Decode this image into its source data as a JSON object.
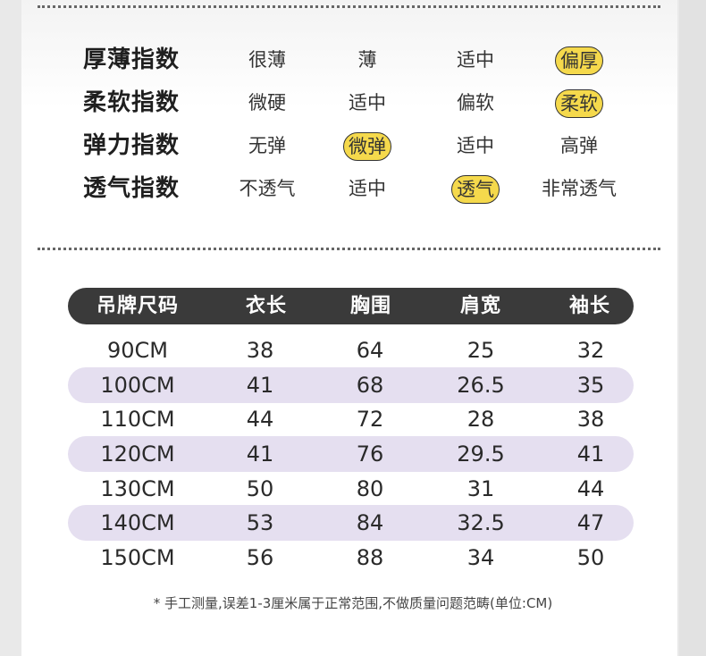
{
  "attributes": [
    {
      "label": "厚薄指数",
      "options": [
        {
          "text": "很薄",
          "selected": false
        },
        {
          "text": "薄",
          "selected": false
        },
        {
          "text": "适中",
          "selected": false
        },
        {
          "text": "偏厚",
          "selected": true
        }
      ]
    },
    {
      "label": "柔软指数",
      "options": [
        {
          "text": "微硬",
          "selected": false
        },
        {
          "text": "适中",
          "selected": false
        },
        {
          "text": "偏软",
          "selected": false
        },
        {
          "text": "柔软",
          "selected": true
        }
      ]
    },
    {
      "label": "弹力指数",
      "options": [
        {
          "text": "无弹",
          "selected": false
        },
        {
          "text": "微弹",
          "selected": true
        },
        {
          "text": "适中",
          "selected": false
        },
        {
          "text": "高弹",
          "selected": false
        }
      ]
    },
    {
      "label": "透气指数",
      "options": [
        {
          "text": "不透气",
          "selected": false
        },
        {
          "text": "适中",
          "selected": false
        },
        {
          "text": "透气",
          "selected": true
        },
        {
          "text": "非常透气",
          "selected": false
        }
      ]
    }
  ],
  "size_table": {
    "headers": [
      "吊牌尺码",
      "衣长",
      "胸围",
      "肩宽",
      "袖长"
    ],
    "rows": [
      [
        "90CM",
        "38",
        "64",
        "25",
        "32"
      ],
      [
        "100CM",
        "41",
        "68",
        "26.5",
        "35"
      ],
      [
        "110CM",
        "44",
        "72",
        "28",
        "38"
      ],
      [
        "120CM",
        "41",
        "76",
        "29.5",
        "41"
      ],
      [
        "130CM",
        "50",
        "80",
        "31",
        "44"
      ],
      [
        "140CM",
        "53",
        "84",
        "32.5",
        "47"
      ],
      [
        "150CM",
        "56",
        "88",
        "34",
        "50"
      ]
    ]
  },
  "footnote": "* 手工测量,误差1-3厘米属于正常范围,不做质量问题范畴(单位:CM)",
  "colors": {
    "highlight": "#f5d94c",
    "header_bg": "#3a3a3a",
    "stripe": "#e5dff0"
  }
}
